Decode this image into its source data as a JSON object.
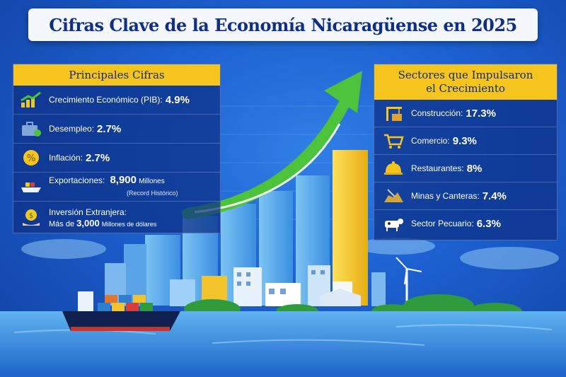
{
  "title": "Cifras Clave de la Economía Nicaragüense en 2025",
  "left_panel": {
    "heading": "Principales Cifras",
    "items": [
      {
        "label": "Crecimiento Económico (PIB):",
        "value": "4.9%",
        "icon": "growth-chart-icon"
      },
      {
        "label": "Desempleo:",
        "value": "2.7%",
        "icon": "briefcase-icon"
      },
      {
        "label": "Inflación:",
        "value": "2.7%",
        "icon": "percent-icon"
      },
      {
        "label": "Exportaciones:",
        "value": "8,900",
        "unit": "Millones",
        "note": "(Record Histórico)",
        "icon": "cargo-ship-icon"
      },
      {
        "label": "Inversión Extranjera:",
        "prefix": "Más de",
        "value": "3,000",
        "unit": "Millones de dólares",
        "icon": "money-hand-icon"
      }
    ]
  },
  "right_panel": {
    "heading_line1": "Sectores que Impulsaron",
    "heading_line2": "el Crecimiento",
    "items": [
      {
        "label": "Construcción:",
        "value": "17.3%",
        "icon": "construction-crane-icon"
      },
      {
        "label": "Comercio:",
        "value": "9.3%",
        "icon": "shopping-cart-icon"
      },
      {
        "label": "Restaurantes:",
        "value": "8%",
        "icon": "serving-cloche-icon"
      },
      {
        "label": "Minas y Canteras:",
        "value": "7.4%",
        "icon": "mining-rocks-icon"
      },
      {
        "label": "Sector Pecuario:",
        "value": "6.3%",
        "icon": "cow-icon"
      }
    ]
  },
  "colors": {
    "background": "#1c5fcf",
    "accent_yellow": "#f5c51e",
    "arrow_green": "#4cc33a",
    "title_text": "#0f2f86"
  },
  "illustration": {
    "bar_chart": "rising-bars",
    "arrow": "growth-arrow",
    "city": "skyline",
    "ship": "container-ship",
    "turbine": "wind-turbine"
  }
}
